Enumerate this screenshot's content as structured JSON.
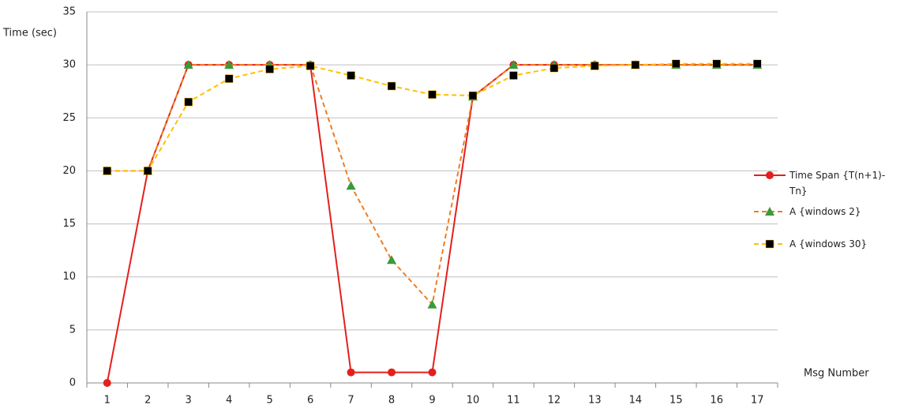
{
  "chart_data": {
    "type": "line",
    "y_label": "Time (sec)",
    "x_label": "Msg Number",
    "categories": [
      "1",
      "2",
      "3",
      "4",
      "5",
      "6",
      "7",
      "8",
      "9",
      "10",
      "11",
      "12",
      "13",
      "14",
      "15",
      "16",
      "17"
    ],
    "ylim": [
      0,
      35
    ],
    "yticks": [
      0,
      5,
      10,
      15,
      20,
      25,
      30,
      35
    ],
    "grid": true,
    "series": [
      {
        "name": "Time Span {T(n+1)-Tn}",
        "color": "#e3201c",
        "dash": false,
        "marker": "circle",
        "marker_color": "#e3201c",
        "values": [
          0,
          20,
          30,
          30,
          30,
          30,
          1,
          1,
          1,
          27,
          30,
          30,
          30,
          30,
          30,
          30,
          30
        ]
      },
      {
        "name": "A {windows 2}",
        "color": "#f07c22",
        "dash": true,
        "marker": "triangle",
        "marker_color": "#3a9a3a",
        "values": [
          20,
          20,
          30,
          30,
          30,
          30,
          18.6,
          11.6,
          7.4,
          27,
          30,
          30,
          30,
          30,
          30,
          30,
          30
        ]
      },
      {
        "name": "A {windows 30}",
        "color": "#ffc000",
        "dash": true,
        "marker": "square",
        "marker_color": "#000000",
        "values": [
          20,
          20,
          26.5,
          28.7,
          29.6,
          29.9,
          29,
          28,
          27.2,
          27.1,
          29,
          29.7,
          29.9,
          30,
          30.1,
          30.1,
          30.1
        ]
      }
    ]
  }
}
